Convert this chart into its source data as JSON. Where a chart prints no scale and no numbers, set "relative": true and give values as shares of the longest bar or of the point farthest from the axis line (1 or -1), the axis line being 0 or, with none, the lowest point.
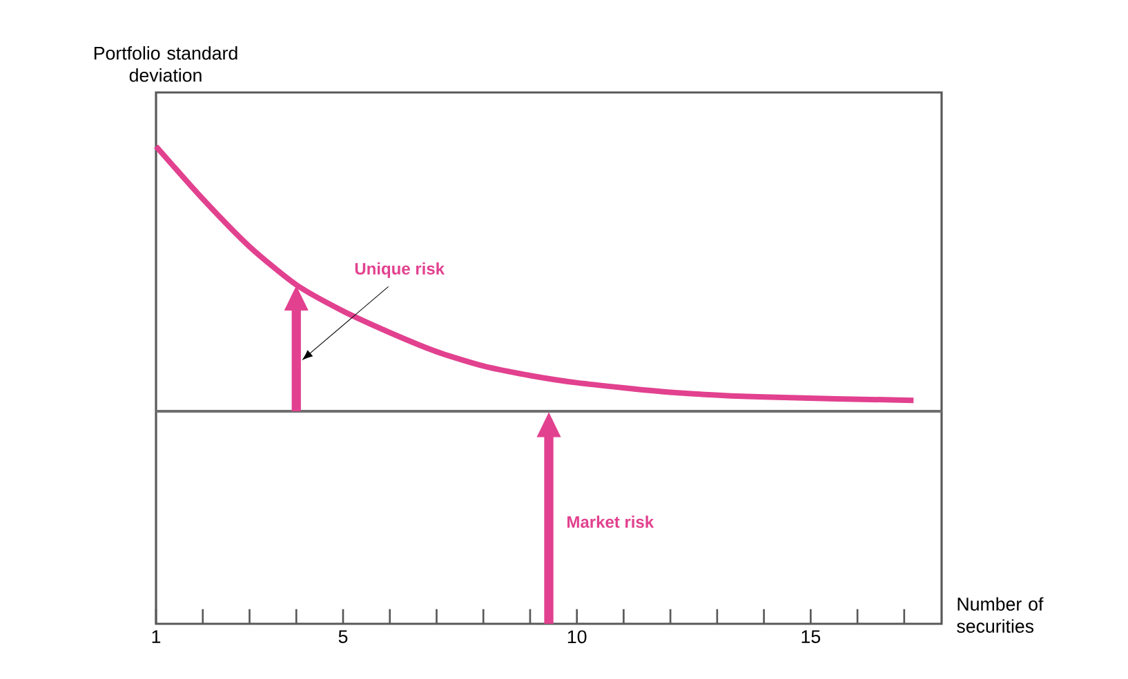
{
  "chart_data": {
    "type": "line",
    "relative": true,
    "xlabel": "Number of securities",
    "ylabel": "Portfolio standard deviation",
    "x": [
      1,
      2,
      3,
      4,
      5,
      6,
      7,
      8,
      9,
      10,
      12,
      14,
      17.2
    ],
    "series": [
      {
        "color": "#e2418f",
        "values": [
          1.0,
          0.89,
          0.79,
          0.71,
          0.655,
          0.61,
          0.57,
          0.54,
          0.52,
          0.505,
          0.485,
          0.475,
          0.468
        ]
      }
    ],
    "xlim": [
      1,
      17.8
    ],
    "xticks": [
      1,
      {
        "value": 2,
        "label": null
      },
      {
        "value": 3,
        "label": null
      },
      {
        "value": 4,
        "label": null
      },
      5,
      {
        "value": 6,
        "label": null
      },
      {
        "value": 7,
        "label": null
      },
      {
        "value": 8,
        "label": null
      },
      {
        "value": 9,
        "label": null
      },
      10,
      {
        "value": 11,
        "label": null
      },
      {
        "value": 12,
        "label": null
      },
      {
        "value": 13,
        "label": null
      },
      {
        "value": 14,
        "label": null
      },
      15,
      {
        "value": 16,
        "label": null
      },
      {
        "value": 17,
        "label": null
      }
    ],
    "ref_lines": [
      {
        "axis": "y",
        "value": 0.445,
        "color": "#6e6e6e"
      }
    ],
    "annotations": [
      "Unique risk",
      "Market risk"
    ],
    "grid": false,
    "marker": "none",
    "line_style": "solid"
  }
}
